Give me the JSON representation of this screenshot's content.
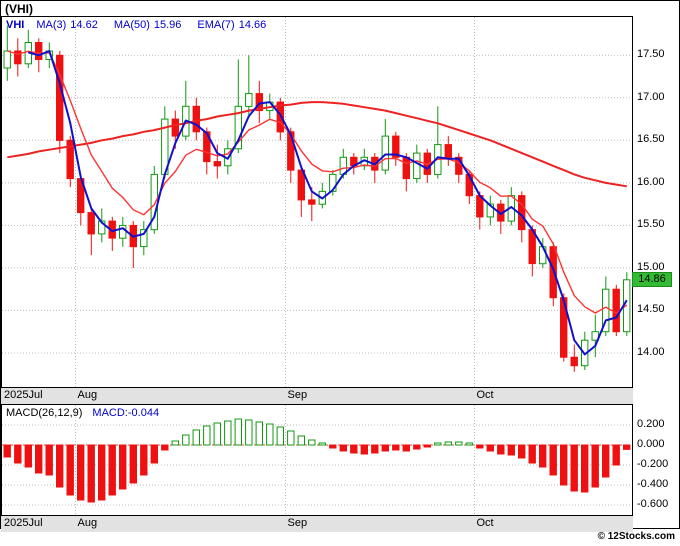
{
  "header": {
    "title": "(VHI)"
  },
  "legend": {
    "symbol": "VHI",
    "items": [
      {
        "label": "MA(3)",
        "value": "14.62"
      },
      {
        "label": "MA(50)",
        "value": "15.96"
      },
      {
        "label": "EMA(7)",
        "value": "14.66"
      }
    ]
  },
  "main_axis": {
    "y_ticks": [
      "17.50",
      "17.00",
      "16.50",
      "16.00",
      "15.50",
      "15.00",
      "14.50",
      "14.00"
    ],
    "price_badge": "14.86"
  },
  "x_axis": {
    "ticks": [
      {
        "label": "2025Jul",
        "idx": 0
      },
      {
        "label": "Aug",
        "idx": 7
      },
      {
        "label": "Sep",
        "idx": 27
      },
      {
        "label": "Oct",
        "idx": 45
      }
    ]
  },
  "macd_panel": {
    "label": "MACD(26,12,9)",
    "value_label": "MACD:-0.044",
    "y_ticks": [
      "0.200",
      "0.000",
      "-0.200",
      "-0.400",
      "-0.600"
    ]
  },
  "watermark": "© 12Stocks.com",
  "colors": {
    "up": "#119911",
    "down": "#ee1111",
    "ma3": "#1111cc",
    "ma50": "#ee2222",
    "ema7": "#ff3333",
    "grid": "#bbbbbb",
    "zero_line": "#dd4444",
    "badge_bg": "#33bb33",
    "legend_text": "#0000cc"
  },
  "chart_data": {
    "type": "candlestick",
    "title": "(VHI)",
    "x_months": [
      "2025Jul",
      "Aug",
      "Sep",
      "Oct"
    ],
    "grid": true,
    "legend_position": "top-left",
    "ylim": [
      13.6,
      17.95
    ],
    "price_ticks": [
      17.5,
      17.0,
      16.5,
      16.0,
      15.5,
      15.0,
      14.5,
      14.0
    ],
    "last_price": 14.86,
    "candles_ohlc": [
      [
        17.35,
        17.85,
        17.2,
        17.55
      ],
      [
        17.55,
        17.7,
        17.25,
        17.4
      ],
      [
        17.4,
        17.8,
        17.35,
        17.65
      ],
      [
        17.65,
        17.7,
        17.3,
        17.45
      ],
      [
        17.45,
        17.65,
        17.35,
        17.55
      ],
      [
        17.5,
        17.55,
        16.35,
        16.5
      ],
      [
        16.5,
        16.55,
        15.95,
        16.05
      ],
      [
        16.05,
        16.1,
        15.5,
        15.65
      ],
      [
        15.65,
        15.7,
        15.15,
        15.4
      ],
      [
        15.4,
        15.7,
        15.3,
        15.55
      ],
      [
        15.55,
        15.6,
        15.2,
        15.35
      ],
      [
        15.35,
        15.6,
        15.25,
        15.5
      ],
      [
        15.5,
        15.55,
        15.0,
        15.25
      ],
      [
        15.25,
        15.55,
        15.15,
        15.45
      ],
      [
        15.45,
        16.2,
        15.4,
        16.1
      ],
      [
        16.1,
        16.9,
        16.05,
        16.75
      ],
      [
        16.75,
        16.85,
        16.4,
        16.55
      ],
      [
        16.55,
        17.2,
        16.5,
        16.9
      ],
      [
        16.9,
        17.0,
        16.5,
        16.6
      ],
      [
        16.6,
        16.65,
        16.1,
        16.25
      ],
      [
        16.25,
        16.45,
        16.05,
        16.2
      ],
      [
        16.2,
        16.5,
        16.1,
        16.4
      ],
      [
        16.4,
        17.45,
        16.35,
        16.9
      ],
      [
        16.9,
        17.5,
        16.8,
        17.05
      ],
      [
        17.05,
        17.2,
        16.7,
        16.85
      ],
      [
        16.85,
        17.05,
        16.75,
        16.95
      ],
      [
        16.95,
        17.0,
        16.5,
        16.6
      ],
      [
        16.6,
        16.65,
        16.0,
        16.15
      ],
      [
        16.15,
        16.2,
        15.6,
        15.8
      ],
      [
        15.8,
        15.95,
        15.55,
        15.75
      ],
      [
        15.75,
        16.0,
        15.7,
        15.9
      ],
      [
        15.9,
        16.15,
        15.85,
        16.1
      ],
      [
        16.1,
        16.4,
        16.05,
        16.3
      ],
      [
        16.3,
        16.35,
        16.1,
        16.2
      ],
      [
        16.2,
        16.4,
        16.15,
        16.3
      ],
      [
        16.3,
        16.35,
        16.0,
        16.15
      ],
      [
        16.15,
        16.75,
        16.1,
        16.55
      ],
      [
        16.55,
        16.6,
        16.2,
        16.3
      ],
      [
        16.3,
        16.35,
        15.9,
        16.05
      ],
      [
        16.05,
        16.45,
        16.0,
        16.35
      ],
      [
        16.35,
        16.4,
        16.0,
        16.1
      ],
      [
        16.1,
        16.9,
        16.05,
        16.45
      ],
      [
        16.45,
        16.55,
        16.2,
        16.3
      ],
      [
        16.3,
        16.35,
        16.0,
        16.1
      ],
      [
        16.1,
        16.15,
        15.75,
        15.85
      ],
      [
        15.85,
        15.9,
        15.45,
        15.6
      ],
      [
        15.6,
        15.85,
        15.5,
        15.75
      ],
      [
        15.75,
        15.8,
        15.4,
        15.55
      ],
      [
        15.55,
        15.95,
        15.5,
        15.85
      ],
      [
        15.85,
        15.9,
        15.3,
        15.45
      ],
      [
        15.45,
        15.5,
        14.9,
        15.05
      ],
      [
        15.05,
        15.35,
        15.0,
        15.25
      ],
      [
        15.25,
        15.3,
        14.55,
        14.65
      ],
      [
        14.65,
        14.7,
        13.9,
        13.95
      ],
      [
        13.95,
        14.1,
        13.78,
        13.85
      ],
      [
        13.85,
        14.25,
        13.8,
        14.15
      ],
      [
        14.15,
        14.45,
        13.95,
        14.25
      ],
      [
        14.25,
        14.9,
        14.2,
        14.75
      ],
      [
        14.75,
        14.8,
        14.2,
        14.25
      ],
      [
        14.25,
        14.95,
        14.2,
        14.86
      ]
    ],
    "overlays": {
      "ma3_period": 3,
      "ema_period": 7,
      "ma3_last": 14.62,
      "ema7_last": 14.66,
      "ma50_last": 15.96,
      "ma50": [
        16.3,
        16.32,
        16.34,
        16.37,
        16.39,
        16.41,
        16.43,
        16.45,
        16.47,
        16.5,
        16.52,
        16.55,
        16.57,
        16.6,
        16.62,
        16.65,
        16.68,
        16.7,
        16.73,
        16.75,
        16.78,
        16.8,
        16.82,
        16.85,
        16.87,
        16.89,
        16.91,
        16.92,
        16.94,
        16.95,
        16.95,
        16.94,
        16.93,
        16.91,
        16.89,
        16.87,
        16.85,
        16.82,
        16.79,
        16.76,
        16.73,
        16.7,
        16.66,
        16.62,
        16.58,
        16.54,
        16.5,
        16.45,
        16.4,
        16.35,
        16.3,
        16.25,
        16.2,
        16.15,
        16.1,
        16.06,
        16.03,
        16.0,
        15.98,
        15.96
      ]
    },
    "macd": {
      "params": "26,12,9",
      "last": -0.044,
      "ylim": [
        -0.7,
        0.4
      ],
      "ticks": [
        0.2,
        0.0,
        -0.2,
        -0.4,
        -0.6
      ],
      "histogram": [
        -0.12,
        -0.18,
        -0.22,
        -0.28,
        -0.3,
        -0.42,
        -0.5,
        -0.55,
        -0.57,
        -0.55,
        -0.5,
        -0.44,
        -0.38,
        -0.3,
        -0.18,
        -0.05,
        0.04,
        0.1,
        0.15,
        0.19,
        0.22,
        0.24,
        0.26,
        0.25,
        0.23,
        0.21,
        0.18,
        0.14,
        0.09,
        0.05,
        0.02,
        -0.03,
        -0.06,
        -0.08,
        -0.09,
        -0.08,
        -0.06,
        -0.05,
        -0.06,
        -0.04,
        -0.02,
        0.02,
        0.03,
        0.03,
        0.02,
        -0.03,
        -0.06,
        -0.09,
        -0.1,
        -0.13,
        -0.18,
        -0.22,
        -0.3,
        -0.4,
        -0.46,
        -0.47,
        -0.42,
        -0.32,
        -0.2,
        -0.044
      ]
    }
  }
}
